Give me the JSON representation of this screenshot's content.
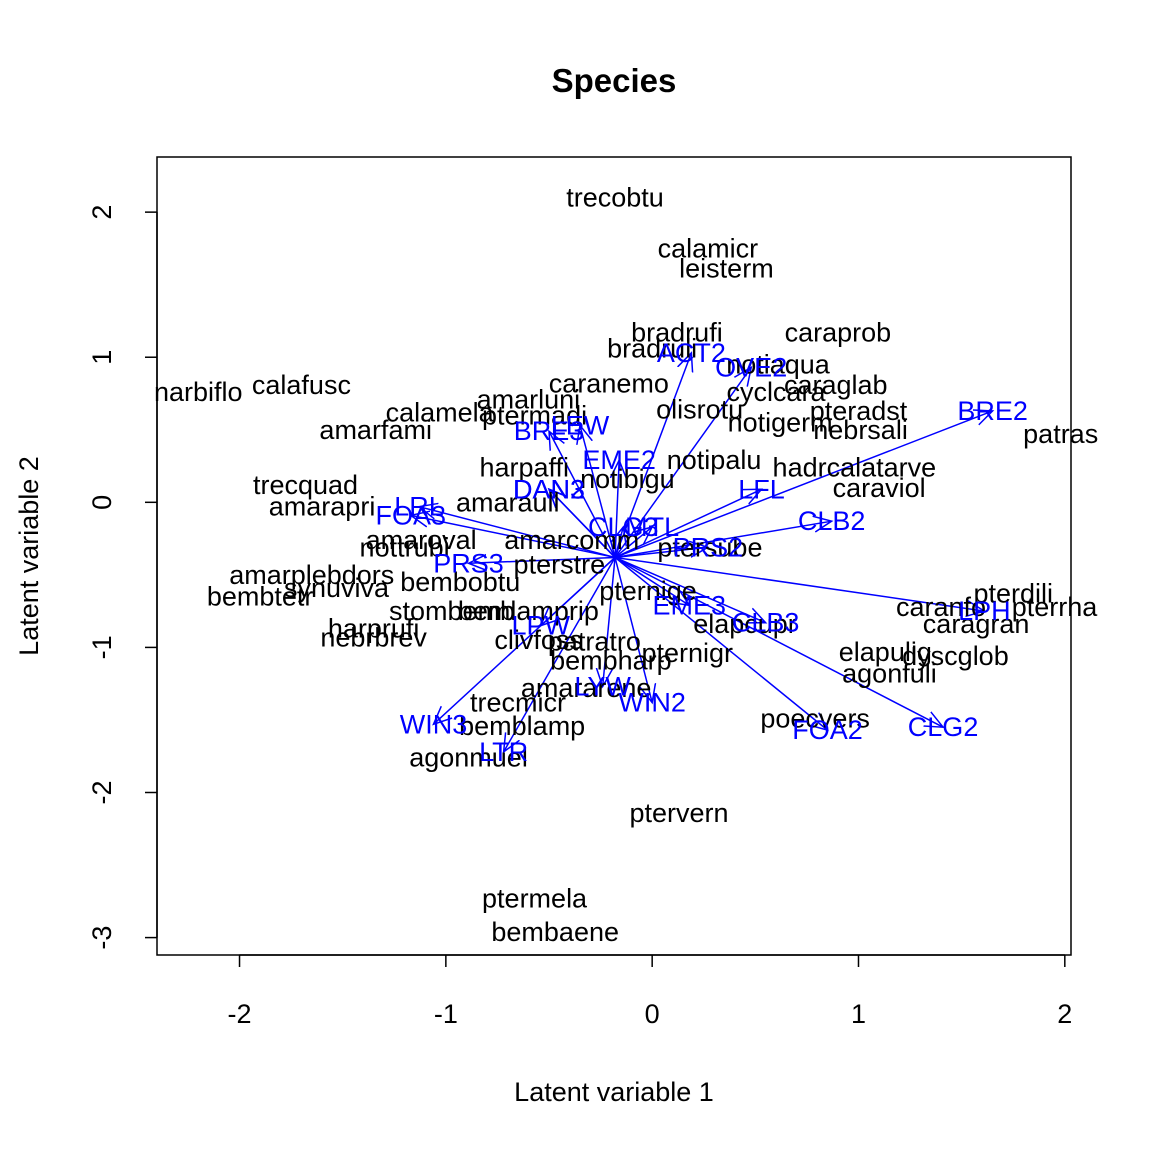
{
  "chart_data": {
    "type": "scatter",
    "title": "Species",
    "xlabel": "Latent variable 1",
    "ylabel": "Latent variable 2",
    "xlim": [
      -2.4,
      2.03
    ],
    "ylim": [
      -3.12,
      2.38
    ],
    "xticks": [
      -2,
      -1,
      0,
      1,
      2
    ],
    "yticks": [
      -3,
      -2,
      -1,
      0,
      1,
      2
    ],
    "xtick_labels": [
      "-2",
      "-1",
      "0",
      "1",
      "2"
    ],
    "ytick_labels": [
      "-3",
      "-2",
      "-1",
      "0",
      "1",
      "2"
    ],
    "arrow_origin": [
      -0.18,
      -0.38
    ],
    "colors": {
      "species": "#000000",
      "env": "#0000ff",
      "axes": "#000000"
    },
    "species": [
      {
        "name": "trecobtu",
        "x": -0.18,
        "y": 2.1
      },
      {
        "name": "calamicr",
        "x": 0.27,
        "y": 1.75
      },
      {
        "name": "leisterm",
        "x": 0.36,
        "y": 1.61
      },
      {
        "name": "bradrufi",
        "x": 0.12,
        "y": 1.17
      },
      {
        "name": "caraprob",
        "x": 0.9,
        "y": 1.17
      },
      {
        "name": "bradruli",
        "x": 0.0,
        "y": 1.06
      },
      {
        "name": "notiaqua",
        "x": 0.61,
        "y": 0.95
      },
      {
        "name": "calafusc",
        "x": -1.7,
        "y": 0.81
      },
      {
        "name": "narbiflo",
        "x": -2.2,
        "y": 0.76
      },
      {
        "name": "caranemo",
        "x": -0.21,
        "y": 0.82
      },
      {
        "name": "caraglab",
        "x": 0.89,
        "y": 0.81
      },
      {
        "name": "cyclcara",
        "x": 0.6,
        "y": 0.76
      },
      {
        "name": "amarluni",
        "x": -0.6,
        "y": 0.71
      },
      {
        "name": "olisrotu",
        "x": 0.23,
        "y": 0.64
      },
      {
        "name": "pteradst",
        "x": 1.0,
        "y": 0.63
      },
      {
        "name": "calamela",
        "x": -1.03,
        "y": 0.62
      },
      {
        "name": "ptermadi",
        "x": -0.57,
        "y": 0.6
      },
      {
        "name": "notigerm",
        "x": 0.62,
        "y": 0.55
      },
      {
        "name": "amarfami",
        "x": -1.34,
        "y": 0.5
      },
      {
        "name": "nebrsali",
        "x": 1.01,
        "y": 0.5
      },
      {
        "name": "patras",
        "x": 1.98,
        "y": 0.47
      },
      {
        "name": "notipalu",
        "x": 0.3,
        "y": 0.29
      },
      {
        "name": "harpaffi",
        "x": -0.62,
        "y": 0.24
      },
      {
        "name": "hadrcalatarve",
        "x": 0.98,
        "y": 0.24
      },
      {
        "name": "notibigu",
        "x": -0.12,
        "y": 0.16
      },
      {
        "name": "trecquad",
        "x": -1.68,
        "y": 0.12
      },
      {
        "name": "caraviol",
        "x": 1.1,
        "y": 0.1
      },
      {
        "name": "amarapri",
        "x": -1.6,
        "y": -0.03
      },
      {
        "name": "amaraull",
        "x": -0.7,
        "y": 0.0
      },
      {
        "name": "amarcomm",
        "x": -0.39,
        "y": -0.26
      },
      {
        "name": "amaroval",
        "x": -1.12,
        "y": -0.26
      },
      {
        "name": "nottrubi",
        "x": -1.2,
        "y": -0.31
      },
      {
        "name": "pterstre",
        "x": -0.45,
        "y": -0.43
      },
      {
        "name": "ptersube",
        "x": 0.28,
        "y": -0.31
      },
      {
        "name": "amarplebdors",
        "x": -1.65,
        "y": -0.5
      },
      {
        "name": "bembobtu",
        "x": -0.93,
        "y": -0.55
      },
      {
        "name": "synuviva",
        "x": -1.53,
        "y": -0.59
      },
      {
        "name": "bembtetr",
        "x": -1.9,
        "y": -0.65
      },
      {
        "name": "pternige",
        "x": -0.02,
        "y": -0.61
      },
      {
        "name": "caranfo",
        "x": 1.4,
        "y": -0.72
      },
      {
        "name": "pterdili",
        "x": 1.75,
        "y": -0.63
      },
      {
        "name": "pterrha",
        "x": 1.95,
        "y": -0.72
      },
      {
        "name": "stombemb",
        "x": -0.97,
        "y": -0.75
      },
      {
        "name": "bemlamprip",
        "x": -0.6,
        "y": -0.75
      },
      {
        "name": "caragran",
        "x": 1.57,
        "y": -0.84
      },
      {
        "name": "elapcupr",
        "x": 0.45,
        "y": -0.84
      },
      {
        "name": "harprufi",
        "x": -1.35,
        "y": -0.87
      },
      {
        "name": "nebrbrev",
        "x": -1.35,
        "y": -0.93
      },
      {
        "name": "clivfoss",
        "x": -0.55,
        "y": -0.95
      },
      {
        "name": "patratro",
        "x": -0.28,
        "y": -0.96
      },
      {
        "name": "pternigr",
        "x": 0.17,
        "y": -1.04
      },
      {
        "name": "elapulig",
        "x": 1.13,
        "y": -1.03
      },
      {
        "name": "dyscglob",
        "x": 1.47,
        "y": -1.06
      },
      {
        "name": "bembharp",
        "x": -0.2,
        "y": -1.09
      },
      {
        "name": "agonfuli",
        "x": 1.15,
        "y": -1.18
      },
      {
        "name": "amararene",
        "x": -0.32,
        "y": -1.28
      },
      {
        "name": "trecmicr",
        "x": -0.65,
        "y": -1.38
      },
      {
        "name": "poecvers",
        "x": 0.79,
        "y": -1.49
      },
      {
        "name": "bemblamp",
        "x": -0.63,
        "y": -1.54
      },
      {
        "name": "agonmuel",
        "x": -0.89,
        "y": -1.76
      },
      {
        "name": "ptervern",
        "x": 0.13,
        "y": -2.14
      },
      {
        "name": "ptermela",
        "x": -0.57,
        "y": -2.73
      },
      {
        "name": "bembaene",
        "x": -0.47,
        "y": -2.96
      }
    ],
    "env": [
      {
        "name": "ACT2",
        "x": 0.19,
        "y": 1.03
      },
      {
        "name": "OVE2",
        "x": 0.48,
        "y": 0.93
      },
      {
        "name": "BRE2",
        "x": 1.65,
        "y": 0.63
      },
      {
        "name": "BRE3",
        "x": -0.5,
        "y": 0.49
      },
      {
        "name": "LEW",
        "x": -0.35,
        "y": 0.53
      },
      {
        "name": "EME2",
        "x": -0.16,
        "y": 0.29
      },
      {
        "name": "DAN2",
        "x": -0.5,
        "y": 0.09
      },
      {
        "name": "DAN3",
        "x": -0.5,
        "y": 0.09
      },
      {
        "name": "LFL",
        "x": 0.53,
        "y": 0.09
      },
      {
        "name": "LRL",
        "x": -1.13,
        "y": -0.03
      },
      {
        "name": "FOA3",
        "x": -1.17,
        "y": -0.09
      },
      {
        "name": "CLG3",
        "x": -0.14,
        "y": -0.17
      },
      {
        "name": "MTL",
        "x": 0.0,
        "y": -0.17
      },
      {
        "name": "CLB2",
        "x": 0.87,
        "y": -0.13
      },
      {
        "name": "PRS2",
        "x": 0.27,
        "y": -0.31
      },
      {
        "name": "PRS3",
        "x": -0.89,
        "y": -0.42
      },
      {
        "name": "LPH",
        "x": 1.61,
        "y": -0.75
      },
      {
        "name": "EME3",
        "x": 0.18,
        "y": -0.71
      },
      {
        "name": "CLB3",
        "x": 0.55,
        "y": -0.83
      },
      {
        "name": "LPW",
        "x": -0.54,
        "y": -0.85
      },
      {
        "name": "FOA2",
        "x": 0.85,
        "y": -1.57
      },
      {
        "name": "CLG2",
        "x": 1.41,
        "y": -1.55
      },
      {
        "name": "LYW",
        "x": -0.24,
        "y": -1.27
      },
      {
        "name": "WIN2",
        "x": 0.0,
        "y": -1.38
      },
      {
        "name": "WIN3",
        "x": -1.06,
        "y": -1.53
      },
      {
        "name": "LTR",
        "x": -0.72,
        "y": -1.72
      }
    ]
  }
}
